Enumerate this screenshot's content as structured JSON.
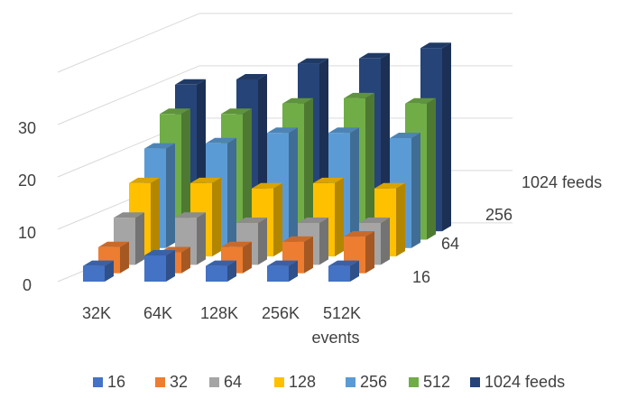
{
  "chart_data": {
    "type": "bar",
    "subtype": "3d-clustered-column",
    "categories": [
      "32K",
      "64K",
      "128K",
      "256K",
      "512K"
    ],
    "xlabel": "events",
    "depth_labels": [
      "16",
      "64",
      "256",
      "1024 feeds"
    ],
    "yticks": [
      "0",
      "10",
      "20",
      "30"
    ],
    "ylim": [
      0,
      40
    ],
    "grid": true,
    "legend_position": "bottom",
    "series": [
      {
        "name": "16",
        "color": "#4472c4",
        "values": [
          3,
          5,
          3,
          3,
          3
        ]
      },
      {
        "name": "32",
        "color": "#ed7d31",
        "values": [
          5,
          4,
          5,
          6,
          7
        ]
      },
      {
        "name": "64",
        "color": "#a5a5a5",
        "values": [
          9,
          9,
          8,
          8,
          8
        ]
      },
      {
        "name": "128",
        "color": "#ffc000",
        "values": [
          14,
          14,
          13,
          14,
          13
        ]
      },
      {
        "name": "256",
        "color": "#5b9bd5",
        "values": [
          19,
          20,
          22,
          22,
          21
        ]
      },
      {
        "name": "512",
        "color": "#70ad47",
        "values": [
          24,
          24,
          26,
          27,
          26
        ]
      },
      {
        "name": "1024 feeds",
        "color": "#264478",
        "values": [
          28,
          29,
          32,
          33,
          35
        ]
      }
    ]
  }
}
